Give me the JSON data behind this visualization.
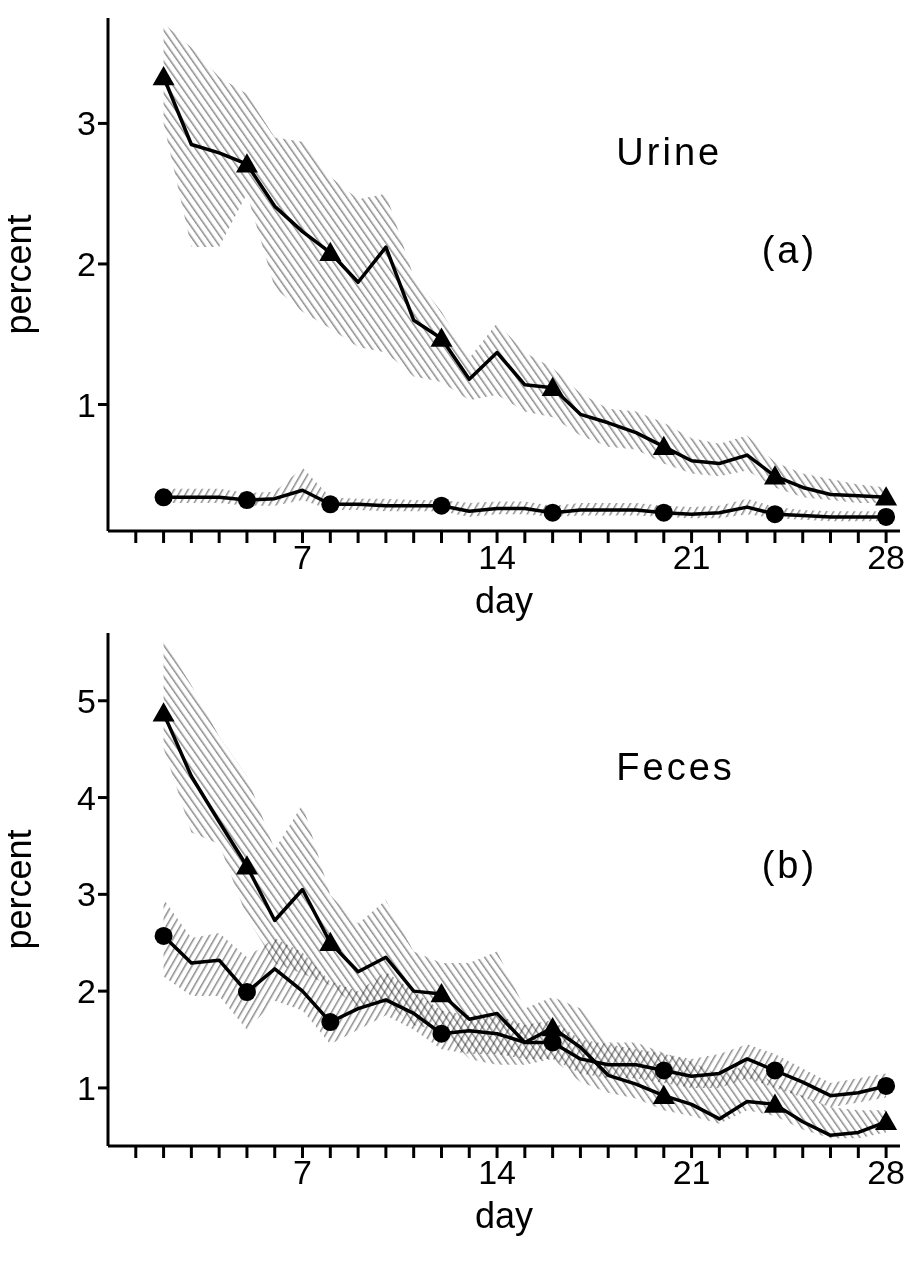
{
  "chart_data": [
    {
      "type": "line",
      "xlabel": "day",
      "ylabel": "percent",
      "annotations": [
        "Urine",
        "(a)"
      ],
      "xlim": [
        0,
        28.5
      ],
      "ylim": [
        0.1,
        3.75
      ],
      "yticks": [
        1,
        2,
        3
      ],
      "xticks": [
        {
          "value": 1,
          "label": null
        },
        {
          "value": 2,
          "label": null
        },
        {
          "value": 3,
          "label": null
        },
        {
          "value": 4,
          "label": null
        },
        {
          "value": 5,
          "label": null
        },
        {
          "value": 6,
          "label": null
        },
        7,
        {
          "value": 8,
          "label": null
        },
        {
          "value": 9,
          "label": null
        },
        {
          "value": 10,
          "label": null
        },
        {
          "value": 11,
          "label": null
        },
        {
          "value": 12,
          "label": null
        },
        {
          "value": 13,
          "label": null
        },
        14,
        {
          "value": 15,
          "label": null
        },
        {
          "value": 16,
          "label": null
        },
        {
          "value": 17,
          "label": null
        },
        {
          "value": 18,
          "label": null
        },
        {
          "value": 19,
          "label": null
        },
        {
          "value": 20,
          "label": null
        },
        21,
        {
          "value": 22,
          "label": null
        },
        {
          "value": 23,
          "label": null
        },
        {
          "value": 24,
          "label": null
        },
        {
          "value": 25,
          "label": null
        },
        {
          "value": 26,
          "label": null
        },
        {
          "value": 27,
          "label": null
        },
        28
      ],
      "line_style": "solid",
      "series": [
        {
          "type": "line",
          "color": "#000000",
          "marker": "none",
          "x": [
            2,
            3,
            4,
            5,
            6,
            7,
            8,
            9,
            10,
            11,
            12,
            13,
            14,
            15,
            16,
            17,
            18,
            19,
            20,
            21,
            22,
            23,
            24,
            25,
            26,
            27,
            28
          ],
          "values": [
            3.33,
            2.85,
            2.79,
            2.71,
            2.41,
            2.23,
            2.08,
            1.87,
            2.12,
            1.6,
            1.47,
            1.18,
            1.37,
            1.14,
            1.12,
            0.93,
            0.87,
            0.8,
            0.7,
            0.6,
            0.58,
            0.64,
            0.49,
            0.41,
            0.36,
            0.35,
            0.34
          ],
          "lower": [
            3.0,
            2.12,
            2.12,
            2.5,
            1.83,
            1.66,
            1.54,
            1.41,
            1.37,
            1.2,
            1.16,
            1.03,
            1.07,
            0.95,
            0.91,
            0.78,
            0.7,
            0.68,
            0.58,
            0.51,
            0.49,
            0.53,
            0.41,
            0.34,
            0.32,
            0.3,
            0.3
          ],
          "upper": [
            3.71,
            3.54,
            3.33,
            3.21,
            2.9,
            2.87,
            2.62,
            2.46,
            2.5,
            1.91,
            1.66,
            1.33,
            1.58,
            1.37,
            1.26,
            1.08,
            0.97,
            0.95,
            0.87,
            0.76,
            0.72,
            0.78,
            0.59,
            0.51,
            0.47,
            0.43,
            0.41
          ]
        },
        {
          "type": "scatter",
          "color": "#000000",
          "marker": "triangle",
          "x": [
            2,
            5,
            8,
            12,
            16,
            20,
            24,
            28
          ],
          "values": [
            3.33,
            2.71,
            2.08,
            1.47,
            1.12,
            0.7,
            0.49,
            0.34
          ]
        },
        {
          "type": "line",
          "color": "#000000",
          "marker": "none",
          "x": [
            2,
            3,
            4,
            5,
            6,
            7,
            8,
            9,
            10,
            11,
            12,
            13,
            14,
            15,
            16,
            17,
            18,
            19,
            20,
            21,
            22,
            23,
            24,
            25,
            26,
            27,
            28
          ],
          "values": [
            0.34,
            0.34,
            0.34,
            0.32,
            0.33,
            0.39,
            0.29,
            0.29,
            0.28,
            0.28,
            0.28,
            0.24,
            0.26,
            0.26,
            0.23,
            0.25,
            0.25,
            0.25,
            0.23,
            0.22,
            0.23,
            0.27,
            0.22,
            0.21,
            0.2,
            0.2,
            0.2
          ],
          "lower": [
            0.3,
            0.3,
            0.3,
            0.28,
            0.28,
            0.32,
            0.25,
            0.25,
            0.24,
            0.24,
            0.24,
            0.2,
            0.22,
            0.22,
            0.2,
            0.21,
            0.21,
            0.21,
            0.2,
            0.19,
            0.19,
            0.22,
            0.19,
            0.18,
            0.17,
            0.17,
            0.17
          ],
          "upper": [
            0.4,
            0.4,
            0.4,
            0.37,
            0.38,
            0.55,
            0.34,
            0.33,
            0.33,
            0.32,
            0.32,
            0.3,
            0.31,
            0.31,
            0.28,
            0.3,
            0.3,
            0.3,
            0.28,
            0.27,
            0.28,
            0.33,
            0.27,
            0.25,
            0.24,
            0.24,
            0.24
          ]
        },
        {
          "type": "scatter",
          "color": "#000000",
          "marker": "circle",
          "x": [
            2,
            5,
            8,
            12,
            16,
            20,
            24,
            28
          ],
          "values": [
            0.34,
            0.32,
            0.29,
            0.28,
            0.23,
            0.23,
            0.22,
            0.2
          ]
        }
      ]
    },
    {
      "type": "line",
      "xlabel": "day",
      "ylabel": "percent",
      "annotations": [
        "Feces",
        "(b)"
      ],
      "xlim": [
        0,
        28.5
      ],
      "ylim": [
        0.4,
        5.7
      ],
      "yticks": [
        1,
        2,
        3,
        4,
        5
      ],
      "xticks": [
        {
          "value": 1,
          "label": null
        },
        {
          "value": 2,
          "label": null
        },
        {
          "value": 3,
          "label": null
        },
        {
          "value": 4,
          "label": null
        },
        {
          "value": 5,
          "label": null
        },
        {
          "value": 6,
          "label": null
        },
        7,
        {
          "value": 8,
          "label": null
        },
        {
          "value": 9,
          "label": null
        },
        {
          "value": 10,
          "label": null
        },
        {
          "value": 11,
          "label": null
        },
        {
          "value": 12,
          "label": null
        },
        {
          "value": 13,
          "label": null
        },
        14,
        {
          "value": 15,
          "label": null
        },
        {
          "value": 16,
          "label": null
        },
        {
          "value": 17,
          "label": null
        },
        {
          "value": 18,
          "label": null
        },
        {
          "value": 19,
          "label": null
        },
        {
          "value": 20,
          "label": null
        },
        21,
        {
          "value": 22,
          "label": null
        },
        {
          "value": 23,
          "label": null
        },
        {
          "value": 24,
          "label": null
        },
        {
          "value": 25,
          "label": null
        },
        {
          "value": 26,
          "label": null
        },
        {
          "value": 27,
          "label": null
        },
        28
      ],
      "line_style": "solid",
      "series": [
        {
          "type": "line",
          "color": "#000000",
          "marker": "none",
          "x": [
            2,
            3,
            4,
            5,
            6,
            7,
            8,
            9,
            10,
            11,
            12,
            13,
            14,
            15,
            16,
            17,
            18,
            19,
            20,
            21,
            22,
            23,
            24,
            25,
            26,
            27,
            28
          ],
          "values": [
            4.87,
            4.22,
            3.75,
            3.29,
            2.73,
            3.05,
            2.5,
            2.2,
            2.35,
            2.0,
            1.97,
            1.71,
            1.77,
            1.47,
            1.62,
            1.42,
            1.13,
            1.04,
            0.92,
            0.83,
            0.68,
            0.86,
            0.83,
            0.65,
            0.51,
            0.54,
            0.65
          ],
          "lower": [
            4.51,
            3.64,
            3.52,
            2.76,
            2.29,
            2.18,
            2.06,
            1.82,
            1.88,
            1.65,
            1.59,
            1.3,
            1.24,
            1.24,
            1.3,
            1.06,
            0.95,
            0.89,
            0.77,
            0.71,
            0.63,
            0.77,
            0.71,
            0.57,
            0.48,
            0.48,
            0.54
          ],
          "upper": [
            5.63,
            5.16,
            4.63,
            4.22,
            3.46,
            3.93,
            2.99,
            2.7,
            2.94,
            2.41,
            2.29,
            2.29,
            2.41,
            1.82,
            1.94,
            1.82,
            1.47,
            1.47,
            1.36,
            1.27,
            1.13,
            1.24,
            1.04,
            0.92,
            0.8,
            0.77,
            0.77
          ]
        },
        {
          "type": "scatter",
          "color": "#000000",
          "marker": "triangle",
          "x": [
            2,
            5,
            8,
            12,
            16,
            20,
            24,
            28
          ],
          "values": [
            4.87,
            3.29,
            2.5,
            1.97,
            1.62,
            0.92,
            0.83,
            0.65
          ]
        },
        {
          "type": "line",
          "color": "#000000",
          "marker": "none",
          "x": [
            2,
            3,
            4,
            5,
            6,
            7,
            8,
            9,
            10,
            11,
            12,
            13,
            14,
            15,
            16,
            17,
            18,
            19,
            20,
            21,
            22,
            23,
            24,
            25,
            26,
            27,
            28
          ],
          "values": [
            2.57,
            2.29,
            2.32,
            1.99,
            2.23,
            2.0,
            1.68,
            1.82,
            1.91,
            1.77,
            1.56,
            1.59,
            1.56,
            1.47,
            1.47,
            1.3,
            1.24,
            1.24,
            1.18,
            1.12,
            1.15,
            1.3,
            1.18,
            1.06,
            0.92,
            0.95,
            1.02
          ],
          "lower": [
            2.15,
            1.95,
            1.95,
            1.6,
            1.9,
            1.8,
            1.45,
            1.6,
            1.75,
            1.6,
            1.4,
            1.35,
            1.35,
            1.3,
            1.3,
            1.15,
            1.1,
            1.1,
            1.05,
            1.0,
            1.0,
            1.1,
            1.0,
            0.9,
            0.8,
            0.85,
            0.9
          ],
          "upper": [
            2.95,
            2.55,
            2.6,
            2.35,
            2.55,
            2.4,
            2.1,
            2.0,
            2.2,
            2.0,
            1.8,
            1.75,
            1.75,
            1.65,
            1.7,
            1.5,
            1.45,
            1.4,
            1.35,
            1.3,
            1.35,
            1.45,
            1.35,
            1.2,
            1.05,
            1.1,
            1.15
          ]
        },
        {
          "type": "scatter",
          "color": "#000000",
          "marker": "circle",
          "x": [
            2,
            5,
            8,
            12,
            16,
            20,
            24,
            28
          ],
          "values": [
            2.57,
            1.99,
            1.68,
            1.56,
            1.47,
            1.18,
            1.18,
            1.02
          ]
        }
      ]
    }
  ]
}
